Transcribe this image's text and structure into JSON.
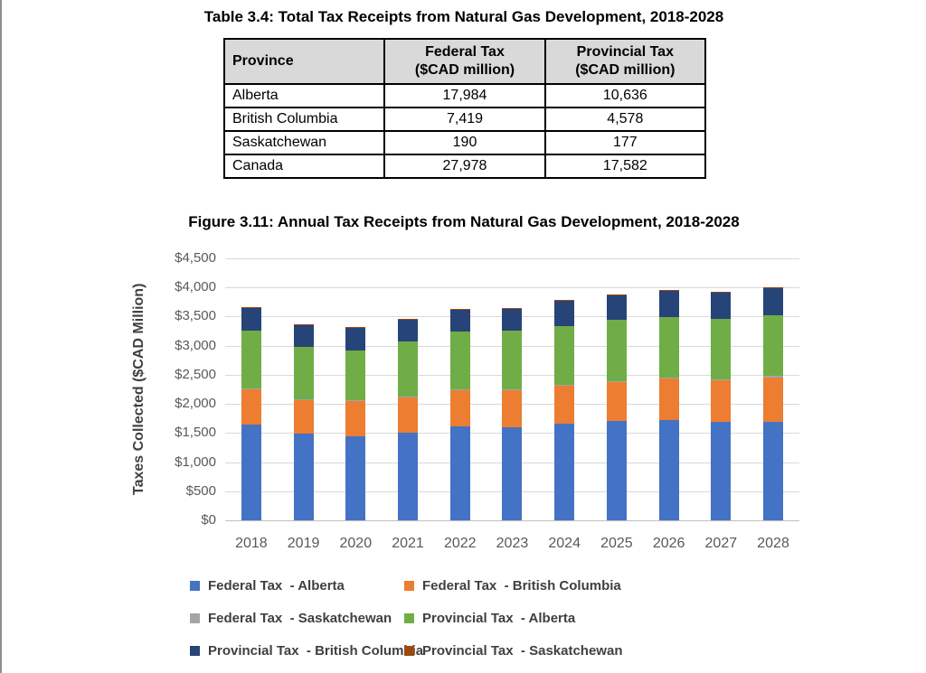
{
  "table_section": {
    "title": "Table 3.4:  Total Tax Receipts from Natural Gas Development, 2018-2028",
    "header_bg": "#D9D9D9",
    "columns": [
      {
        "title": "Province",
        "subtitle": ""
      },
      {
        "title": "Federal Tax",
        "subtitle": "($CAD million)"
      },
      {
        "title": "Provincial Tax",
        "subtitle": "($CAD million)"
      }
    ],
    "rows": [
      {
        "province": "Alberta",
        "federal": "17,984",
        "provincial": "10,636"
      },
      {
        "province": "British Columbia",
        "federal": "7,419",
        "provincial": "4,578"
      },
      {
        "province": "Saskatchewan",
        "federal": "190",
        "provincial": "177"
      },
      {
        "province": "Canada",
        "federal": "27,978",
        "provincial": "17,582"
      }
    ]
  },
  "figure_section": {
    "title": "Figure 3.11:  Annual Tax Receipts from Natural Gas Development, 2018-2028"
  },
  "chart_data": {
    "type": "bar",
    "stacked": true,
    "title": "Figure 3.11: Annual Tax Receipts from Natural Gas Development, 2018-2028",
    "xlabel": "",
    "ylabel": "Taxes Collected ($CAD Million)",
    "ylim": [
      0,
      4500
    ],
    "ytick_step": 500,
    "ytick_labels": [
      "$0",
      "$500",
      "$1,000",
      "$1,500",
      "$2,000",
      "$2,500",
      "$3,000",
      "$3,500",
      "$4,000",
      "$4,500"
    ],
    "grid": true,
    "legend_position": "bottom",
    "categories": [
      "2018",
      "2019",
      "2020",
      "2021",
      "2022",
      "2023",
      "2024",
      "2025",
      "2026",
      "2027",
      "2028"
    ],
    "series": [
      {
        "name": "Federal Tax  - Alberta",
        "color": "#4472C4",
        "values": [
          1645,
          1485,
          1440,
          1510,
          1620,
          1600,
          1660,
          1700,
          1730,
          1685,
          1695
        ]
      },
      {
        "name": "Federal Tax  - British Columbia",
        "color": "#ED7D31",
        "values": [
          600,
          580,
          610,
          605,
          610,
          630,
          655,
          670,
          710,
          725,
          765
        ]
      },
      {
        "name": "Federal Tax  - Saskatchewan",
        "color": "#A5A5A5",
        "values": [
          17,
          17,
          17,
          17,
          17,
          17,
          17,
          17,
          17,
          17,
          17
        ]
      },
      {
        "name": "Provincial Tax  - Alberta",
        "color": "#70AD47",
        "values": [
          995,
          895,
          845,
          935,
          995,
          1005,
          1005,
          1055,
          1035,
          1030,
          1040
        ]
      },
      {
        "name": "Provincial Tax  - British Columbia",
        "color": "#264478",
        "values": [
          390,
          375,
          395,
          380,
          380,
          385,
          430,
          420,
          455,
          460,
          465
        ]
      },
      {
        "name": "Provincial Tax  - Saskatchewan",
        "color": "#9E480E",
        "values": [
          16,
          16,
          16,
          16,
          16,
          16,
          16,
          16,
          16,
          16,
          16
        ]
      }
    ],
    "totals_by_year": [
      3663,
      3368,
      3323,
      3463,
      3638,
      3653,
      3783,
      3878,
      3963,
      3933,
      3998
    ]
  }
}
